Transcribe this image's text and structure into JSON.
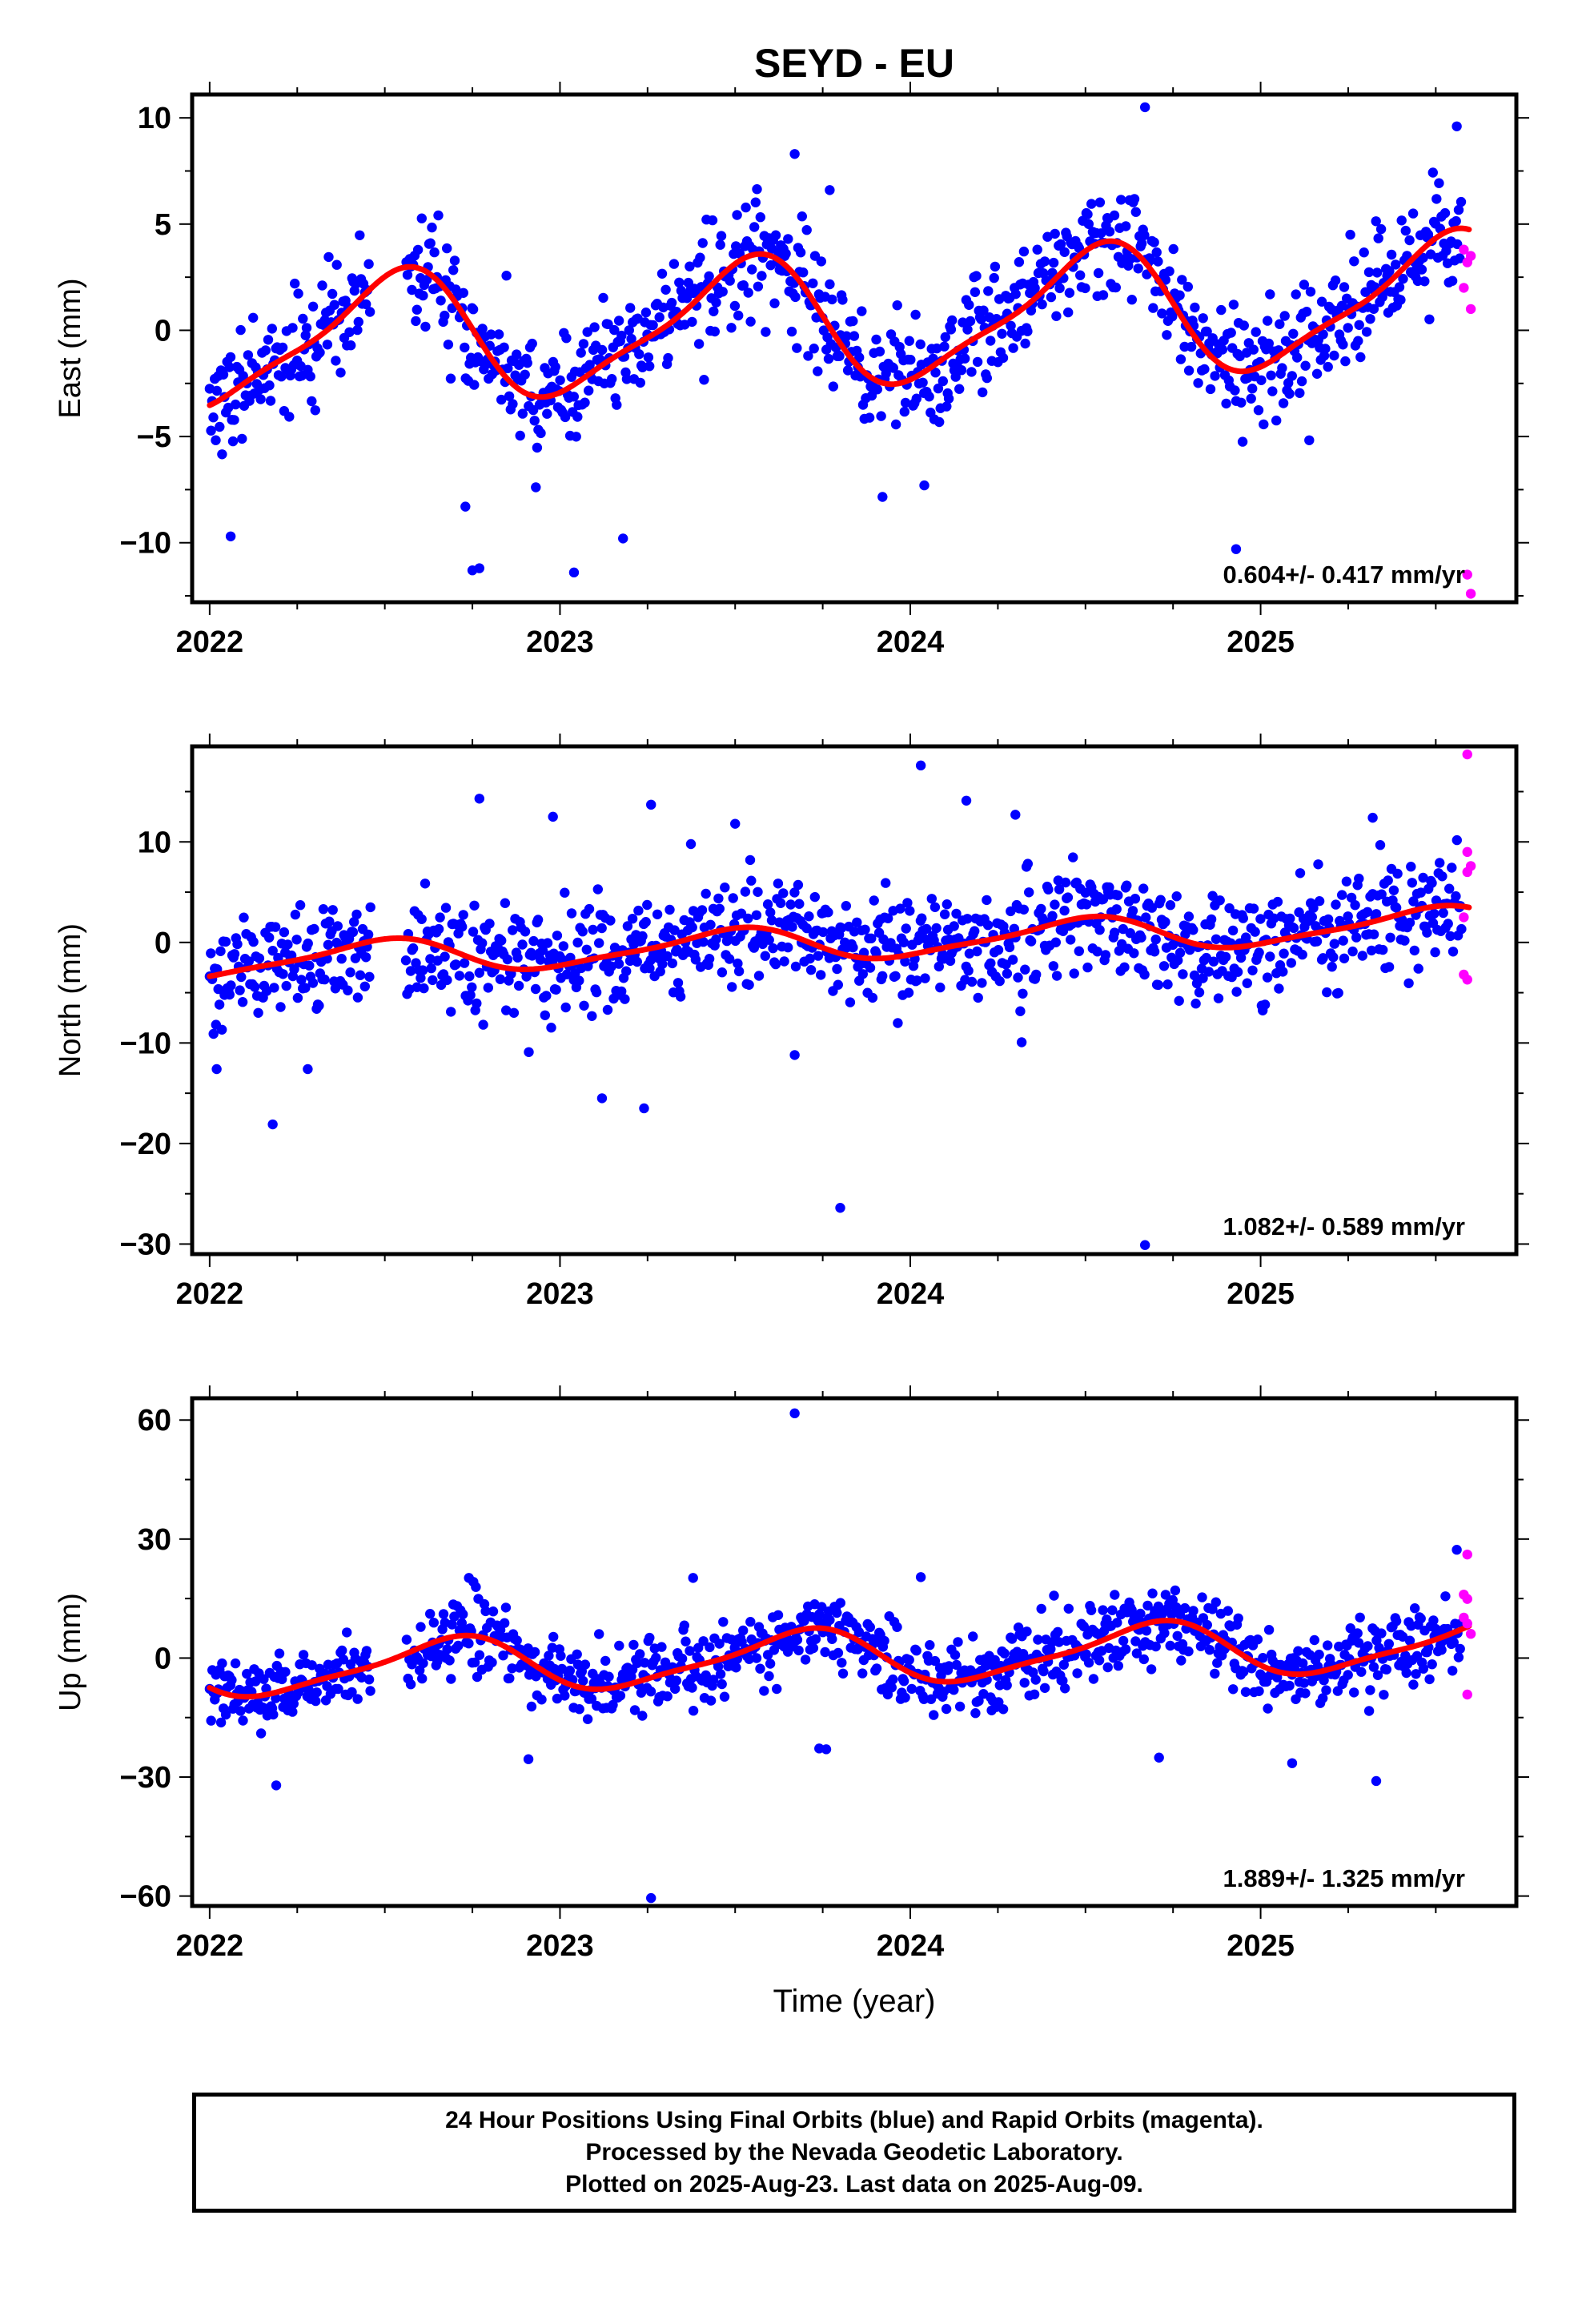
{
  "chart_data": {
    "type": "scatter",
    "title": "SEYD - EU",
    "xlabel": "Time (year)",
    "x_ticks": [
      "2022",
      "2023",
      "2024",
      "2025"
    ],
    "xlim": [
      2021.95,
      2025.73
    ],
    "series_info": [
      {
        "name": "Final Orbits",
        "color": "#0000ff"
      },
      {
        "name": "Rapid Orbits",
        "color": "#ff00ff"
      },
      {
        "name": "Model",
        "color": "#ff0000"
      }
    ],
    "panels": [
      {
        "id": "east",
        "ylabel": "East (mm)",
        "ylim": [
          -12.8,
          11.1
        ],
        "yticks": [
          10,
          5,
          0,
          -5,
          -10
        ],
        "ytick_labels": [
          "10",
          "5",
          "0",
          "−5",
          "−10"
        ],
        "rate_label": "0.604+/- 0.417 mm/yr",
        "rate": 0.604,
        "annual_amp": 2.9,
        "annual_phase_peak": 0.52,
        "scatter": 1.4,
        "trend_offset": -0.7,
        "outliers": [
          {
            "x": 2022.75,
            "y": -11.3
          },
          {
            "x": 2022.77,
            "y": -11.2
          },
          {
            "x": 2023.04,
            "y": -11.4
          },
          {
            "x": 2022.73,
            "y": -8.3
          },
          {
            "x": 2023.67,
            "y": 8.3
          },
          {
            "x": 2023.77,
            "y": 6.6
          },
          {
            "x": 2024.67,
            "y": 10.5
          },
          {
            "x": 2024.93,
            "y": -10.3
          },
          {
            "x": 2025.56,
            "y": 9.6
          },
          {
            "x": 2022.06,
            "y": -9.7
          },
          {
            "x": 2024.04,
            "y": -7.3
          },
          {
            "x": 2023.18,
            "y": -9.8
          }
        ],
        "rapid": [
          {
            "x": 2025.58,
            "y": 3.8
          },
          {
            "x": 2025.59,
            "y": 3.2
          },
          {
            "x": 2025.6,
            "y": 3.5
          },
          {
            "x": 2025.58,
            "y": 2.0
          },
          {
            "x": 2025.6,
            "y": 1.0
          },
          {
            "x": 2025.59,
            "y": -11.5
          },
          {
            "x": 2025.6,
            "y": -12.4
          }
        ]
      },
      {
        "id": "north",
        "ylabel": "North (mm)",
        "ylim": [
          -31,
          19.5
        ],
        "yticks": [
          10,
          0,
          -10,
          -20,
          -30
        ],
        "ytick_labels": [
          "10",
          "0",
          "−10",
          "−20",
          "−30"
        ],
        "rate_label": "1.082+/- 0.589 mm/yr",
        "rate": 1.082,
        "annual_amp": 1.6,
        "annual_phase_peak": 0.48,
        "scatter": 2.8,
        "trend_offset": -2.0,
        "outliers": [
          {
            "x": 2022.77,
            "y": 14.3
          },
          {
            "x": 2022.98,
            "y": 12.5
          },
          {
            "x": 2023.26,
            "y": 13.7
          },
          {
            "x": 2023.5,
            "y": 11.8
          },
          {
            "x": 2024.03,
            "y": 17.6
          },
          {
            "x": 2024.16,
            "y": 14.1
          },
          {
            "x": 2024.3,
            "y": 12.7
          },
          {
            "x": 2025.32,
            "y": 12.4
          },
          {
            "x": 2022.18,
            "y": -18.1
          },
          {
            "x": 2023.12,
            "y": -15.5
          },
          {
            "x": 2023.24,
            "y": -16.5
          },
          {
            "x": 2023.8,
            "y": -26.4
          },
          {
            "x": 2024.67,
            "y": -30.1
          },
          {
            "x": 2022.02,
            "y": -12.6
          },
          {
            "x": 2022.28,
            "y": -12.6
          },
          {
            "x": 2023.67,
            "y": -11.2
          }
        ],
        "rapid": [
          {
            "x": 2025.59,
            "y": 18.7
          },
          {
            "x": 2025.59,
            "y": 9.0
          },
          {
            "x": 2025.6,
            "y": 7.6
          },
          {
            "x": 2025.59,
            "y": 7.0
          },
          {
            "x": 2025.58,
            "y": 2.5
          },
          {
            "x": 2025.58,
            "y": -3.2
          },
          {
            "x": 2025.59,
            "y": -3.7
          }
        ]
      },
      {
        "id": "up",
        "ylabel": "Up (mm)",
        "ylim": [
          -62.5,
          65.5
        ],
        "yticks": [
          60,
          30,
          0,
          -30,
          -60
        ],
        "ytick_labels": [
          "60",
          "30",
          "0",
          "−30",
          "−60"
        ],
        "rate_label": "1.889+/- 1.325 mm/yr",
        "rate": 1.889,
        "annual_amp": 6.5,
        "annual_phase_peak": 0.68,
        "scatter": 4.6,
        "trend_offset": -3.2,
        "outliers": [
          {
            "x": 2023.67,
            "y": 61.7
          },
          {
            "x": 2023.26,
            "y": -60.5
          },
          {
            "x": 2022.19,
            "y": -32.1
          },
          {
            "x": 2025.33,
            "y": -31.0
          },
          {
            "x": 2024.71,
            "y": -25.1
          },
          {
            "x": 2025.09,
            "y": -26.5
          },
          {
            "x": 2023.74,
            "y": -22.8
          },
          {
            "x": 2023.76,
            "y": -23.0
          },
          {
            "x": 2022.91,
            "y": -25.5
          },
          {
            "x": 2023.38,
            "y": 20.2
          },
          {
            "x": 2024.03,
            "y": 20.4
          },
          {
            "x": 2025.56,
            "y": 27.3
          },
          {
            "x": 2022.74,
            "y": 20.2
          }
        ],
        "rapid": [
          {
            "x": 2025.59,
            "y": 26.1
          },
          {
            "x": 2025.58,
            "y": 16.0
          },
          {
            "x": 2025.59,
            "y": 14.9
          },
          {
            "x": 2025.58,
            "y": 10.2
          },
          {
            "x": 2025.59,
            "y": 8.7
          },
          {
            "x": 2025.6,
            "y": 6.1
          },
          {
            "x": 2025.59,
            "y": -9.2
          }
        ]
      }
    ],
    "grid": false,
    "legend": "none"
  },
  "footer": {
    "line1": "24 Hour Positions Using Final Orbits (blue) and Rapid Orbits (magenta).",
    "line2": "Processed by the Nevada Geodetic Laboratory.",
    "line3": "Plotted on 2025-Aug-23. Last data on 2025-Aug-09."
  }
}
